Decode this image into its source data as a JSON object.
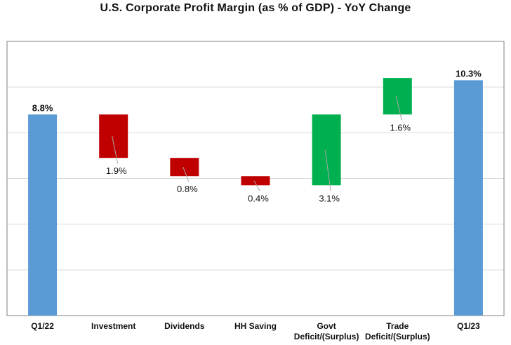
{
  "chart_data": {
    "type": "waterfall",
    "title": "U.S.  Corporate Profit Margin (as % of GDP) - YoY Change",
    "categories": [
      "Q1/22",
      "Investment",
      "Dividends",
      "HH Saving",
      "Govt Deficit/(Surplus)",
      "Trade Deficit/(Surplus)",
      "Q1/23"
    ],
    "category_lines": [
      [
        "Q1/22"
      ],
      [
        "Investment"
      ],
      [
        "Dividends"
      ],
      [
        "HH Saving"
      ],
      [
        "Govt",
        "Deficit/(Surplus)"
      ],
      [
        "Trade",
        "Deficit/(Surplus)"
      ],
      [
        "Q1/23"
      ]
    ],
    "bars": [
      {
        "kind": "total",
        "start": 0,
        "end": 8.8,
        "label": "8.8%"
      },
      {
        "kind": "decrease",
        "start": 8.8,
        "end": 6.9,
        "label": "1.9%"
      },
      {
        "kind": "decrease",
        "start": 6.9,
        "end": 6.1,
        "label": "0.8%"
      },
      {
        "kind": "decrease",
        "start": 6.1,
        "end": 5.7,
        "label": "0.4%"
      },
      {
        "kind": "increase",
        "start": 5.7,
        "end": 8.8,
        "label": "3.1%"
      },
      {
        "kind": "increase",
        "start": 8.8,
        "end": 10.4,
        "label": "1.6%"
      },
      {
        "kind": "total",
        "start": 0,
        "end": 10.3,
        "label": "10.3%"
      }
    ],
    "ylim": [
      0,
      12
    ],
    "gridlines": [
      2,
      4,
      6,
      8,
      10
    ],
    "grid": true,
    "legend": "none",
    "colors": {
      "total": "#5b9bd5",
      "decrease": "#c00000",
      "increase": "#00b050",
      "grid": "#d9d9d9",
      "frame": "#7f7f7f"
    }
  }
}
